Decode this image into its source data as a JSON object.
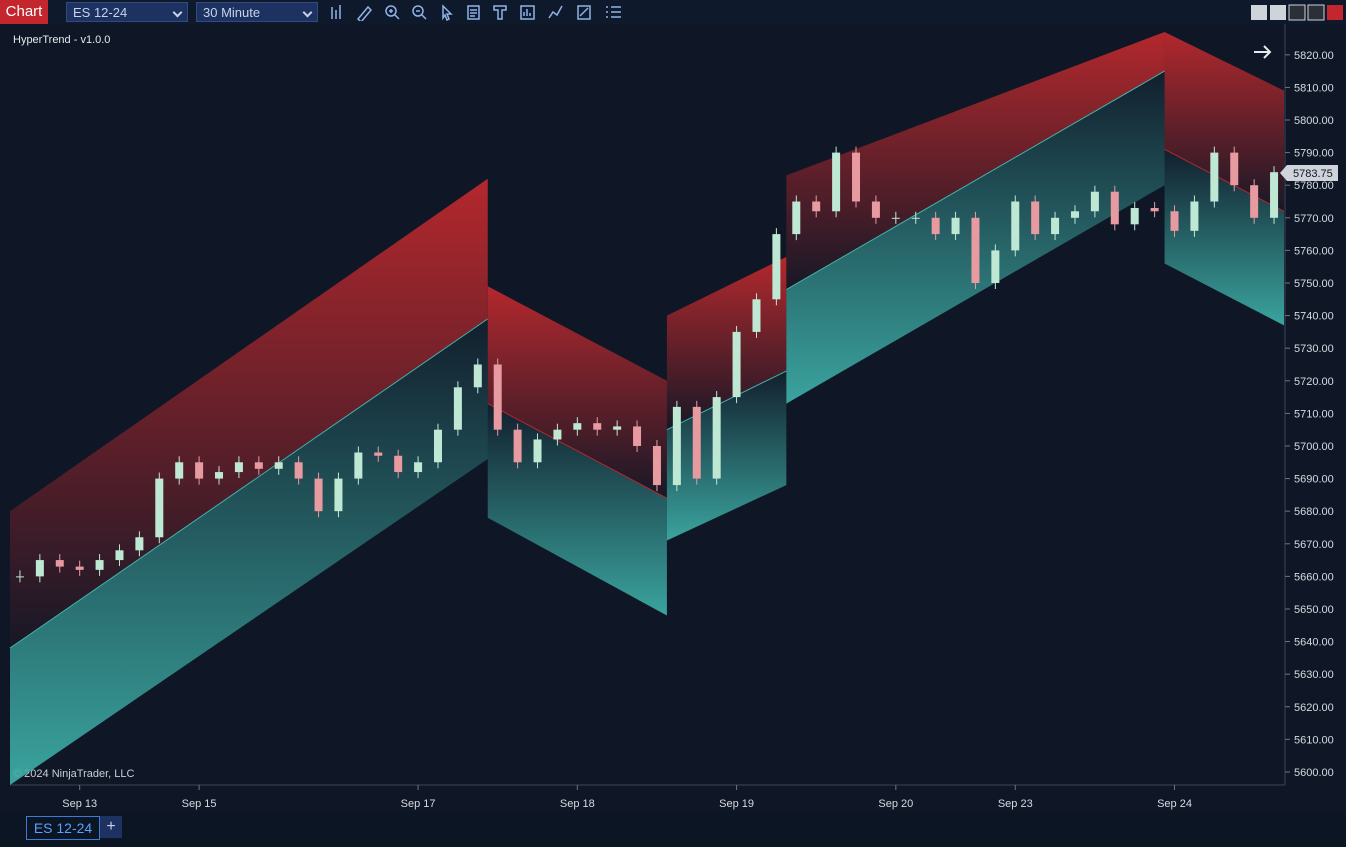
{
  "toolbar": {
    "chart_button": "Chart",
    "instrument": "ES 12-24",
    "interval": "30 Minute"
  },
  "chart": {
    "indicator_label": "HyperTrend - v1.0.0",
    "copyright": "© 2024 NinjaTrader, LLC",
    "categories": [
      null,
      null,
      null,
      "Sep 13",
      null,
      null,
      null,
      null,
      null,
      "Sep 15",
      null,
      null,
      null,
      null,
      null,
      null,
      null,
      null,
      null,
      null,
      "Sep 17",
      null,
      null,
      null,
      null,
      null,
      null,
      null,
      "Sep 18",
      null,
      null,
      null,
      null,
      null,
      null,
      null,
      "Sep 19",
      null,
      null,
      null,
      null,
      null,
      null,
      null,
      "Sep 20",
      null,
      null,
      null,
      null,
      null,
      "Sep 23",
      null,
      null,
      null,
      null,
      null,
      null,
      null,
      "Sep 24",
      null,
      null,
      null,
      null,
      null
    ],
    "closes": [
      5660,
      5665,
      5663,
      5662,
      5665,
      5668,
      5672,
      5690,
      5695,
      5690,
      5692,
      5695,
      5693,
      5695,
      5690,
      5680,
      5690,
      5698,
      5697,
      5692,
      5695,
      5705,
      5718,
      5725,
      5705,
      5695,
      5702,
      5705,
      5707,
      5705,
      5706,
      5700,
      5688,
      5712,
      5690,
      5715,
      5735,
      5745,
      5765,
      5775,
      5772,
      5790,
      5775,
      5770,
      5770,
      5770,
      5765,
      5770,
      5750,
      5760,
      5775,
      5765,
      5770,
      5772,
      5778,
      5768,
      5773,
      5772,
      5766,
      5775,
      5790,
      5780,
      5770,
      5784
    ],
    "ylim": [
      5596,
      5827
    ],
    "yticks": [
      {
        "value": 5600,
        "label": "5600.00"
      },
      {
        "value": 5610,
        "label": "5610.00"
      },
      {
        "value": 5620,
        "label": "5620.00"
      },
      {
        "value": 5630,
        "label": "5630.00"
      },
      {
        "value": 5640,
        "label": "5640.00"
      },
      {
        "value": 5650,
        "label": "5650.00"
      },
      {
        "value": 5660,
        "label": "5660.00"
      },
      {
        "value": 5670,
        "label": "5670.00"
      },
      {
        "value": 5680,
        "label": "5680.00"
      },
      {
        "value": 5690,
        "label": "5690.00"
      },
      {
        "value": 5700,
        "label": "5700.00"
      },
      {
        "value": 5710,
        "label": "5710.00"
      },
      {
        "value": 5720,
        "label": "5720.00"
      },
      {
        "value": 5730,
        "label": "5730.00"
      },
      {
        "value": 5740,
        "label": "5740.00"
      },
      {
        "value": 5750,
        "label": "5750.00"
      },
      {
        "value": 5760,
        "label": "5760.00"
      },
      {
        "value": 5770,
        "label": "5770.00"
      },
      {
        "value": 5780,
        "label": "5780.00"
      },
      {
        "value": 5790,
        "label": "5790.00"
      },
      {
        "value": 5800,
        "label": "5800.00"
      },
      {
        "value": 5810,
        "label": "5810.00"
      },
      {
        "value": 5820,
        "label": "5820.00"
      }
    ],
    "last_price": 5783.75,
    "bands": [
      {
        "from": 0,
        "to": 23,
        "upper": [
          5680,
          5782
        ],
        "mid": [
          5638,
          5739
        ],
        "lower": [
          5596,
          5696
        ]
      },
      {
        "from": 24,
        "to": 32,
        "upper": [
          5749,
          5720
        ],
        "mid": [
          5713,
          5684
        ],
        "lower": [
          5678,
          5648
        ]
      },
      {
        "from": 33,
        "to": 38,
        "upper": [
          5740,
          5758
        ],
        "mid": [
          5705,
          5723
        ],
        "lower": [
          5671,
          5688
        ]
      },
      {
        "from": 39,
        "to": 57,
        "upper": [
          5783,
          5827
        ],
        "mid": [
          5748,
          5815
        ],
        "lower": [
          5713,
          5780
        ]
      },
      {
        "from": 58,
        "to": 63,
        "upper": [
          5827,
          5809
        ],
        "mid": [
          5791,
          5772
        ],
        "lower": [
          5756,
          5737
        ]
      }
    ],
    "upper_color": "#b3282d",
    "lower_color": "#3fb3ab",
    "up_color": "#bfe8d4",
    "down_color": "#e79aa0"
  },
  "tabs": [
    "ES 12-24"
  ],
  "add_tab": "+"
}
